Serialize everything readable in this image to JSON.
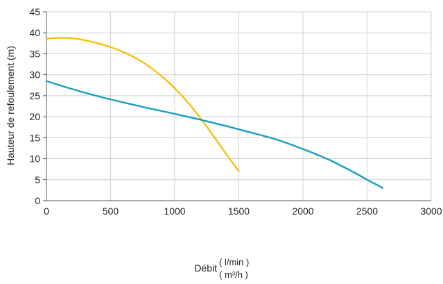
{
  "chart_data": {
    "type": "line",
    "title": "",
    "ylabel": "Hauteur de refoulement (m)",
    "xlabel": "Débit",
    "xunits": [
      "( l/min )",
      "( m³/h )"
    ],
    "xlim": [
      0,
      3000
    ],
    "ylim": [
      0,
      45
    ],
    "xticks": [
      0,
      500,
      1000,
      1500,
      2000,
      2500,
      3000
    ],
    "yticks": [
      0,
      5,
      10,
      15,
      20,
      25,
      30,
      35,
      40,
      45
    ],
    "grid": true,
    "series": [
      {
        "color": "#F5C010",
        "x": [
          0,
          100,
          200,
          300,
          400,
          500,
          600,
          700,
          800,
          900,
          1000,
          1100,
          1200,
          1300,
          1400,
          1500
        ],
        "y": [
          38.6,
          38.8,
          38.7,
          38.2,
          37.5,
          36.6,
          35.4,
          33.9,
          32.0,
          29.6,
          26.8,
          23.5,
          19.7,
          15.5,
          11.2,
          7.0
        ]
      },
      {
        "color": "#1A9EC0",
        "x": [
          0,
          200,
          400,
          600,
          800,
          1000,
          1200,
          1400,
          1600,
          1800,
          2000,
          2200,
          2400,
          2500,
          2600,
          2620
        ],
        "y": [
          28.5,
          26.6,
          24.9,
          23.4,
          22.0,
          20.7,
          19.3,
          17.8,
          16.2,
          14.5,
          12.3,
          9.8,
          6.7,
          5.0,
          3.4,
          3.0
        ]
      }
    ]
  }
}
